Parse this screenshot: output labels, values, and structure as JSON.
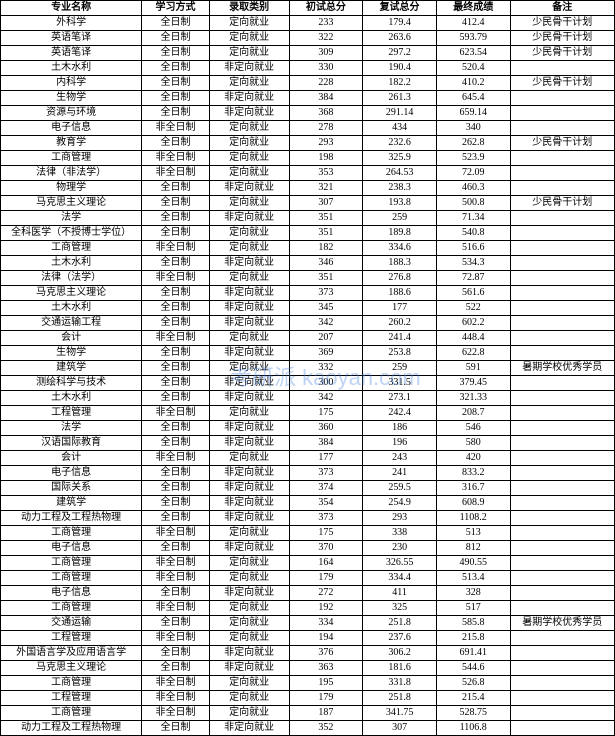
{
  "table": {
    "columns": [
      "专业名称",
      "学习方式",
      "录取类别",
      "初试总分",
      "复试总分",
      "最终成绩",
      "备注"
    ],
    "rows": [
      [
        "外科学",
        "全日制",
        "定向就业",
        "233",
        "179.4",
        "412.4",
        "少民骨干计划"
      ],
      [
        "英语笔译",
        "全日制",
        "定向就业",
        "322",
        "263.6",
        "593.79",
        "少民骨干计划"
      ],
      [
        "英语笔译",
        "全日制",
        "定向就业",
        "309",
        "297.2",
        "623.54",
        "少民骨干计划"
      ],
      [
        "土木水利",
        "全日制",
        "非定向就业",
        "330",
        "190.4",
        "520.4",
        ""
      ],
      [
        "内科学",
        "全日制",
        "定向就业",
        "228",
        "182.2",
        "410.2",
        "少民骨干计划"
      ],
      [
        "生物学",
        "全日制",
        "非定向就业",
        "384",
        "261.3",
        "645.4",
        ""
      ],
      [
        "资源与环境",
        "全日制",
        "非定向就业",
        "368",
        "291.14",
        "659.14",
        ""
      ],
      [
        "电子信息",
        "非全日制",
        "定向就业",
        "278",
        "434",
        "340",
        ""
      ],
      [
        "教育学",
        "全日制",
        "定向就业",
        "293",
        "232.6",
        "262.8",
        "少民骨干计划"
      ],
      [
        "工商管理",
        "非全日制",
        "定向就业",
        "198",
        "325.9",
        "523.9",
        ""
      ],
      [
        "法律（非法学）",
        "非全日制",
        "定向就业",
        "353",
        "264.53",
        "72.09",
        ""
      ],
      [
        "物理学",
        "全日制",
        "非定向就业",
        "321",
        "238.3",
        "460.3",
        ""
      ],
      [
        "马克思主义理论",
        "全日制",
        "定向就业",
        "307",
        "193.8",
        "500.8",
        "少民骨干计划"
      ],
      [
        "法学",
        "全日制",
        "非定向就业",
        "351",
        "259",
        "71.34",
        ""
      ],
      [
        "全科医学（不授博士学位）",
        "全日制",
        "定向就业",
        "351",
        "189.8",
        "540.8",
        ""
      ],
      [
        "工商管理",
        "非全日制",
        "定向就业",
        "182",
        "334.6",
        "516.6",
        ""
      ],
      [
        "土木水利",
        "全日制",
        "非定向就业",
        "346",
        "188.3",
        "534.3",
        ""
      ],
      [
        "法律（法学）",
        "非全日制",
        "定向就业",
        "351",
        "276.8",
        "72.87",
        ""
      ],
      [
        "马克思主义理论",
        "全日制",
        "非定向就业",
        "373",
        "188.6",
        "561.6",
        ""
      ],
      [
        "土木水利",
        "全日制",
        "非定向就业",
        "345",
        "177",
        "522",
        ""
      ],
      [
        "交通运输工程",
        "全日制",
        "非定向就业",
        "342",
        "260.2",
        "602.2",
        ""
      ],
      [
        "会计",
        "非全日制",
        "定向就业",
        "207",
        "241.4",
        "448.4",
        ""
      ],
      [
        "生物学",
        "全日制",
        "非定向就业",
        "369",
        "253.8",
        "622.8",
        ""
      ],
      [
        "建筑学",
        "全日制",
        "定向就业",
        "332",
        "259",
        "591",
        "暑期学校优秀学员"
      ],
      [
        "测绘科学与技术",
        "全日制",
        "非定向就业",
        "300",
        "331.5",
        "379.45",
        ""
      ],
      [
        "土木水利",
        "全日制",
        "非定向就业",
        "342",
        "273.1",
        "321.33",
        ""
      ],
      [
        "工程管理",
        "非全日制",
        "定向就业",
        "175",
        "242.4",
        "208.7",
        ""
      ],
      [
        "法学",
        "全日制",
        "非定向就业",
        "360",
        "186",
        "546",
        ""
      ],
      [
        "汉语国际教育",
        "全日制",
        "非定向就业",
        "384",
        "196",
        "580",
        ""
      ],
      [
        "会计",
        "非全日制",
        "定向就业",
        "177",
        "243",
        "420",
        ""
      ],
      [
        "电子信息",
        "全日制",
        "非定向就业",
        "373",
        "241",
        "833.2",
        ""
      ],
      [
        "国际关系",
        "全日制",
        "非定向就业",
        "374",
        "259.5",
        "316.7",
        ""
      ],
      [
        "建筑学",
        "全日制",
        "非定向就业",
        "354",
        "254.9",
        "608.9",
        ""
      ],
      [
        "动力工程及工程热物理",
        "全日制",
        "非定向就业",
        "373",
        "293",
        "1108.2",
        ""
      ],
      [
        "工商管理",
        "非全日制",
        "定向就业",
        "175",
        "338",
        "513",
        ""
      ],
      [
        "电子信息",
        "全日制",
        "非定向就业",
        "370",
        "230",
        "812",
        ""
      ],
      [
        "工商管理",
        "非全日制",
        "定向就业",
        "164",
        "326.55",
        "490.55",
        ""
      ],
      [
        "工商管理",
        "非全日制",
        "定向就业",
        "179",
        "334.4",
        "513.4",
        ""
      ],
      [
        "电子信息",
        "全日制",
        "非定向就业",
        "272",
        "411",
        "328",
        ""
      ],
      [
        "工商管理",
        "非全日制",
        "定向就业",
        "192",
        "325",
        "517",
        ""
      ],
      [
        "交通运输",
        "全日制",
        "定向就业",
        "334",
        "251.8",
        "585.8",
        "暑期学校优秀学员"
      ],
      [
        "工程管理",
        "非全日制",
        "定向就业",
        "194",
        "237.6",
        "215.8",
        ""
      ],
      [
        "外国语言学及应用语言学",
        "全日制",
        "非定向就业",
        "376",
        "306.2",
        "691.41",
        ""
      ],
      [
        "马克思主义理论",
        "全日制",
        "非定向就业",
        "363",
        "181.6",
        "544.6",
        ""
      ],
      [
        "工商管理",
        "非全日制",
        "定向就业",
        "195",
        "331.8",
        "526.8",
        ""
      ],
      [
        "工程管理",
        "非全日制",
        "定向就业",
        "179",
        "251.8",
        "215.4",
        ""
      ],
      [
        "工商管理",
        "非全日制",
        "定向就业",
        "187",
        "341.75",
        "528.75",
        ""
      ],
      [
        "动力工程及工程热物理",
        "全日制",
        "非定向就业",
        "352",
        "307",
        "1106.8",
        ""
      ]
    ],
    "col_classes": [
      "col-name",
      "col-study",
      "col-type",
      "col-first",
      "col-retest",
      "col-final",
      "col-remark"
    ]
  },
  "watermark": "考研派 kaoyan.com"
}
